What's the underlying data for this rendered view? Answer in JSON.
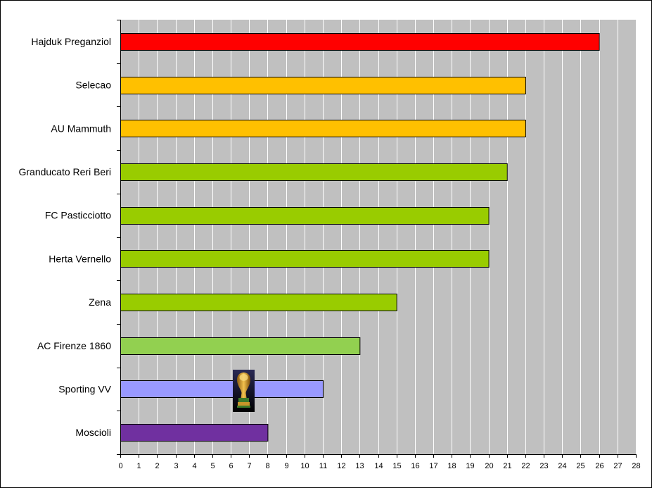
{
  "chart_data": {
    "type": "bar",
    "orientation": "horizontal",
    "title": "",
    "xlabel": "",
    "ylabel": "",
    "categories": [
      "Hajduk Preganziol",
      "Selecao",
      "AU Mammuth",
      "Granducato Reri Beri",
      "FC Pasticciotto",
      "Herta Vernello",
      "Zena",
      "AC Firenze 1860",
      "Sporting VV",
      "Moscioli"
    ],
    "values": [
      26,
      22,
      22,
      21,
      20,
      20,
      15,
      13,
      11,
      8
    ],
    "colors": [
      "#ff0000",
      "#ffc000",
      "#ffc000",
      "#99cc00",
      "#99cc00",
      "#99cc00",
      "#99cc00",
      "#92d050",
      "#9999ff",
      "#7030a0"
    ],
    "xlim": [
      0,
      28
    ],
    "ticks": [
      0,
      1,
      2,
      3,
      4,
      5,
      6,
      7,
      8,
      9,
      10,
      11,
      12,
      13,
      14,
      15,
      16,
      17,
      18,
      19,
      20,
      21,
      22,
      23,
      24,
      25,
      26,
      27,
      28
    ],
    "grid": true,
    "plot_background": "#c0c0c0",
    "gridline_color": "#ffffff",
    "legend": "none",
    "trophy_icon": "world-cup-trophy-icon"
  }
}
